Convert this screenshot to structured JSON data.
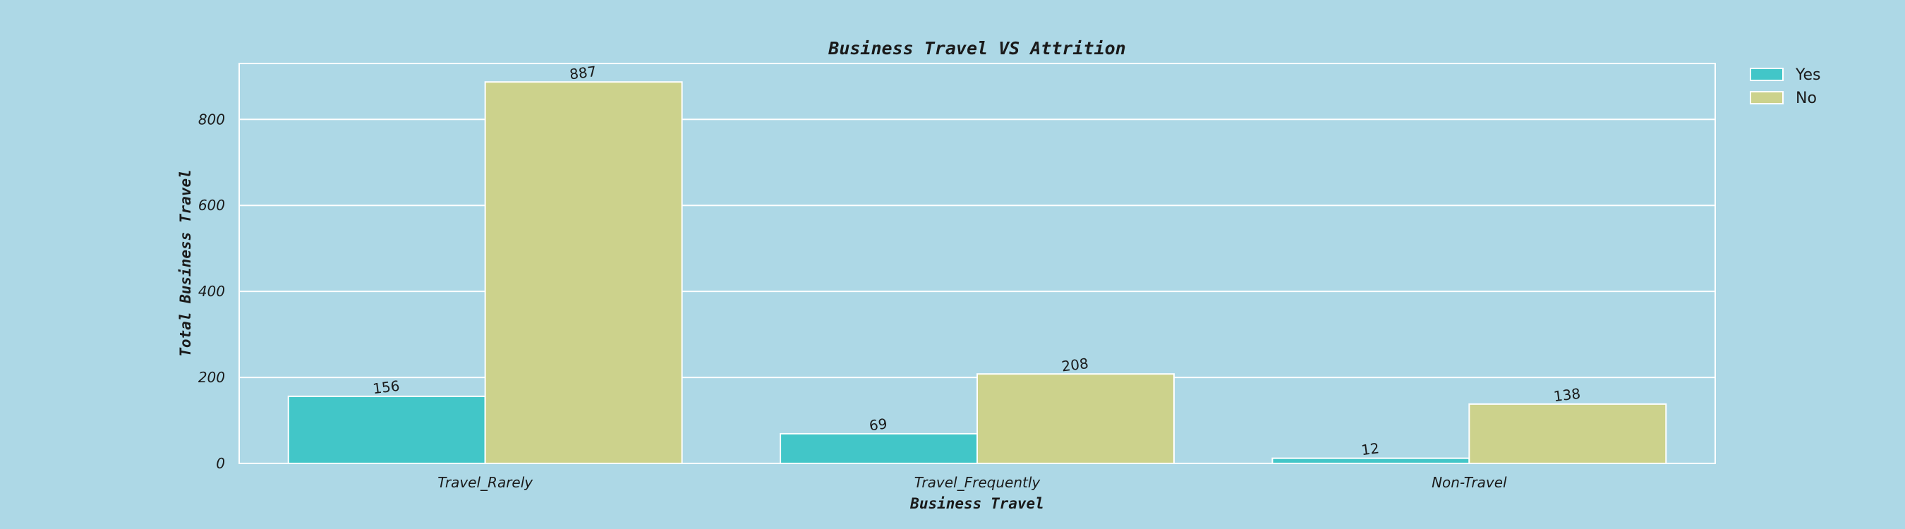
{
  "chart_data": {
    "type": "bar",
    "title": "Business Travel VS Attrition",
    "xlabel": "Business Travel",
    "ylabel": "Total Business Travel",
    "categories": [
      "Travel_Rarely",
      "Travel_Frequently",
      "Non-Travel"
    ],
    "series": [
      {
        "name": "Yes",
        "values": [
          156,
          69,
          12
        ],
        "color": "#42c6c8"
      },
      {
        "name": "No",
        "values": [
          887,
          208,
          138
        ],
        "color": "#ccd28c"
      }
    ],
    "ylim": [
      0,
      930
    ],
    "yticks": [
      0,
      200,
      400,
      600,
      800
    ],
    "grid": true,
    "legend_position": "top-right outside",
    "data_labels": true
  },
  "colors": {
    "background": "#add8e6",
    "grid": "#ffffff"
  }
}
